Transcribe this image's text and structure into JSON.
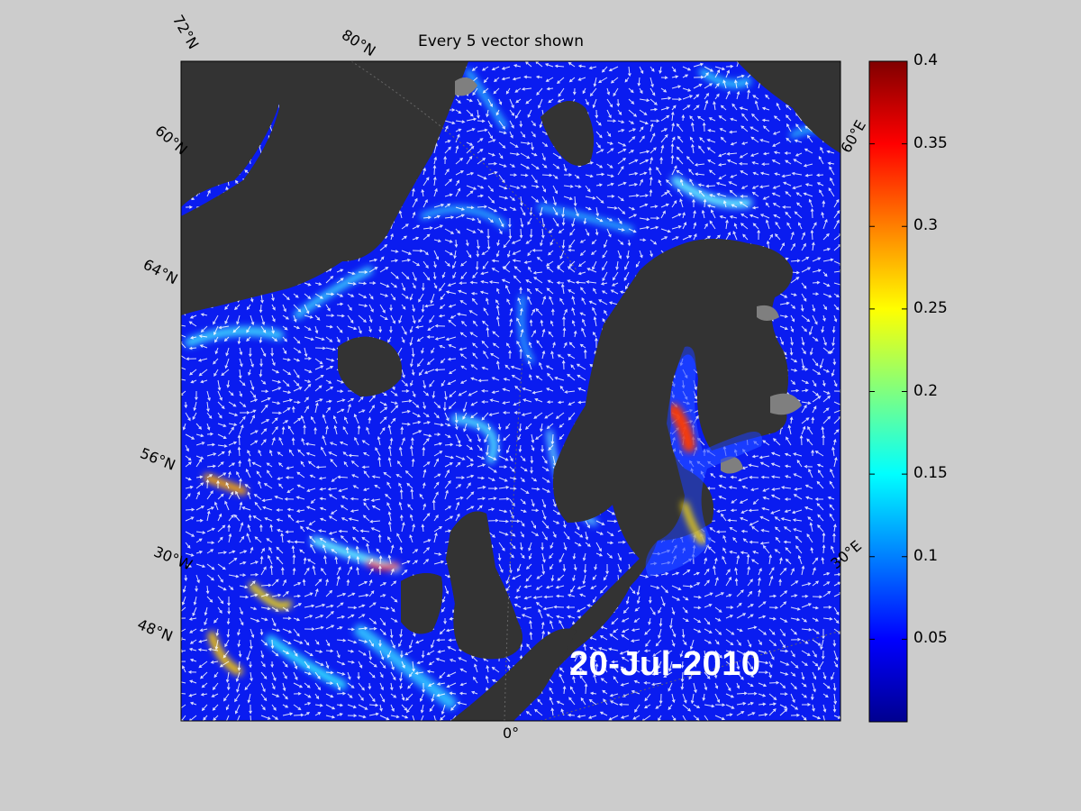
{
  "title": "Every 5 vector shown",
  "date_label": "20-Jul-2010",
  "graticule_labels": {
    "lat_72n": "72°N",
    "lat_80n": "80°N",
    "lat_60n_left": "60°N",
    "lat_64n": "64°N",
    "lat_56n": "56°N",
    "lon_30w": "30°W",
    "lat_48n": "48°N",
    "lon_0": "0°",
    "lon_30e": "30°E",
    "lon_60e": "60°E"
  },
  "colorbar": {
    "min": 0,
    "max": 0.4,
    "ticks": [
      "0.4",
      "0.35",
      "0.3",
      "0.25",
      "0.2",
      "0.15",
      "0.1",
      "0.05"
    ],
    "colormap": "jet"
  },
  "colors": {
    "background": "#cccccc",
    "land": "#333333",
    "ice": "#7f7f7f",
    "vector": "#ffffff",
    "ocean_low": "#0010ff"
  }
}
